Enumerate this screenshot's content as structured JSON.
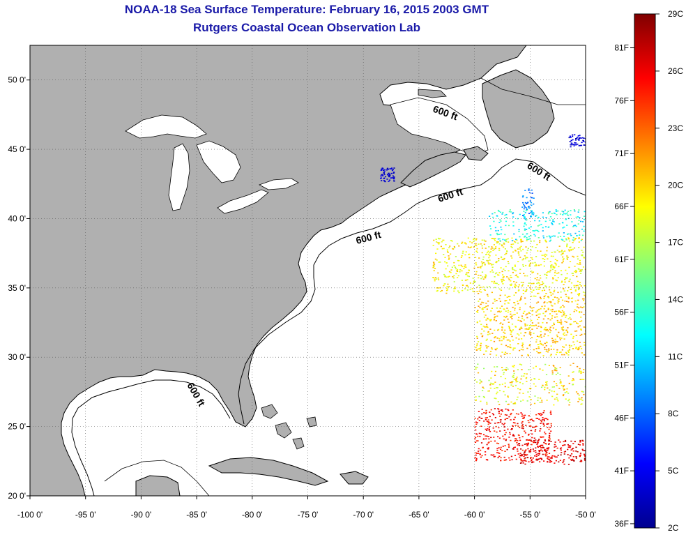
{
  "title": {
    "line1": "NOAA-18 Sea Surface Temperature:  February 16, 2015 2003 GMT",
    "line2": "Rutgers Coastal Ocean Observation Lab"
  },
  "map": {
    "lon_range": [
      -100,
      -50
    ],
    "lat_range": [
      20,
      52.5
    ],
    "grid": true,
    "x_ticks": [
      {
        "value": -100,
        "label": "-100 0'"
      },
      {
        "value": -95,
        "label": "-95 0'"
      },
      {
        "value": -90,
        "label": "-90 0'"
      },
      {
        "value": -85,
        "label": "-85 0'"
      },
      {
        "value": -80,
        "label": "-80 0'"
      },
      {
        "value": -75,
        "label": "-75 0'"
      },
      {
        "value": -70,
        "label": "-70 0'"
      },
      {
        "value": -65,
        "label": "-65 0'"
      },
      {
        "value": -60,
        "label": "-60 0'"
      },
      {
        "value": -55,
        "label": "-55 0'"
      },
      {
        "value": -50,
        "label": "-50 0'"
      }
    ],
    "y_ticks": [
      {
        "value": 50,
        "label": "50 0'"
      },
      {
        "value": 45,
        "label": "45 0'"
      },
      {
        "value": 40,
        "label": "40 0'"
      },
      {
        "value": 35,
        "label": "35 0'"
      },
      {
        "value": 30,
        "label": "30 0'"
      },
      {
        "value": 25,
        "label": "25 0'"
      },
      {
        "value": 20,
        "label": "20 0'"
      }
    ],
    "land_color": "#b0b0b0",
    "contour_label": "600 ft"
  },
  "colorbar": {
    "colors": [
      "#00008f",
      "#0000ff",
      "#0080ff",
      "#00ffff",
      "#80ff80",
      "#ffff00",
      "#ff8000",
      "#ff0000",
      "#800000"
    ],
    "celsius": [
      {
        "value": 29,
        "label": "29C"
      },
      {
        "value": 26,
        "label": "26C"
      },
      {
        "value": 23,
        "label": "23C"
      },
      {
        "value": 20,
        "label": "20C"
      },
      {
        "value": 17,
        "label": "17C"
      },
      {
        "value": 14,
        "label": "14C"
      },
      {
        "value": 11,
        "label": "11C"
      },
      {
        "value": 8,
        "label": "8C"
      },
      {
        "value": 5,
        "label": "5C"
      },
      {
        "value": 2,
        "label": "2C"
      }
    ],
    "fahrenheit": [
      {
        "value": 81,
        "label": "81F"
      },
      {
        "value": 76,
        "label": "76F"
      },
      {
        "value": 71,
        "label": "71F"
      },
      {
        "value": 66,
        "label": "66F"
      },
      {
        "value": 61,
        "label": "61F"
      },
      {
        "value": 56,
        "label": "56F"
      },
      {
        "value": 51,
        "label": "51F"
      },
      {
        "value": 46,
        "label": "46F"
      },
      {
        "value": 41,
        "label": "41F"
      },
      {
        "value": 36,
        "label": "36F"
      }
    ]
  }
}
